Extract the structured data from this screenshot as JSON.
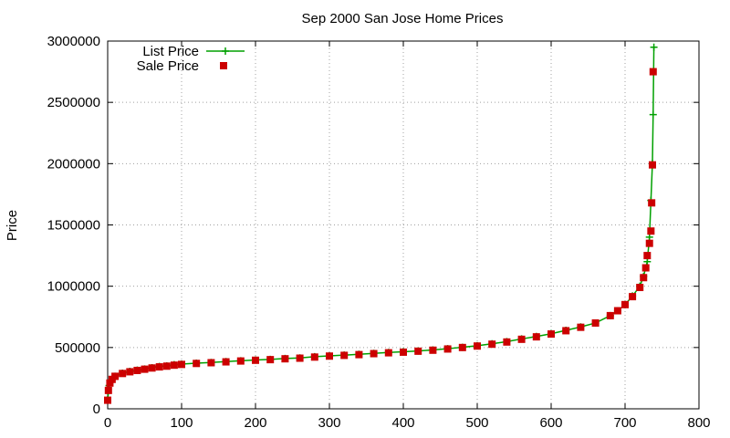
{
  "chart_data": {
    "type": "scatter",
    "title": "Sep 2000 San Jose Home Prices",
    "xlabel": "",
    "ylabel": "Price",
    "xlim": [
      0,
      800
    ],
    "ylim": [
      0,
      3000000
    ],
    "x_ticks": [
      "0",
      "100",
      "200",
      "300",
      "400",
      "500",
      "600",
      "700",
      "800"
    ],
    "y_ticks": [
      "0",
      "500000",
      "1000000",
      "1500000",
      "2000000",
      "2500000",
      "3000000"
    ],
    "grid": true,
    "legend_position": "top-left",
    "series": [
      {
        "name": "List Price",
        "style": "line-with-plus-markers",
        "color": "#00a000",
        "points": [
          [
            0,
            75000
          ],
          [
            2,
            190000
          ],
          [
            5,
            230000
          ],
          [
            10,
            265000
          ],
          [
            20,
            290000
          ],
          [
            30,
            305000
          ],
          [
            40,
            315000
          ],
          [
            50,
            325000
          ],
          [
            60,
            335000
          ],
          [
            70,
            345000
          ],
          [
            80,
            350000
          ],
          [
            90,
            360000
          ],
          [
            100,
            365000
          ],
          [
            120,
            372000
          ],
          [
            140,
            378000
          ],
          [
            160,
            385000
          ],
          [
            180,
            392000
          ],
          [
            200,
            398000
          ],
          [
            220,
            403000
          ],
          [
            240,
            410000
          ],
          [
            260,
            415000
          ],
          [
            280,
            425000
          ],
          [
            300,
            432000
          ],
          [
            320,
            438000
          ],
          [
            340,
            445000
          ],
          [
            360,
            452000
          ],
          [
            380,
            460000
          ],
          [
            400,
            465000
          ],
          [
            420,
            472000
          ],
          [
            440,
            480000
          ],
          [
            460,
            490000
          ],
          [
            480,
            502000
          ],
          [
            500,
            515000
          ],
          [
            520,
            530000
          ],
          [
            540,
            548000
          ],
          [
            560,
            570000
          ],
          [
            580,
            590000
          ],
          [
            600,
            612000
          ],
          [
            620,
            640000
          ],
          [
            640,
            668000
          ],
          [
            660,
            700000
          ],
          [
            680,
            760000
          ],
          [
            690,
            800000
          ],
          [
            700,
            850000
          ],
          [
            710,
            920000
          ],
          [
            720,
            1000000
          ],
          [
            725,
            1080000
          ],
          [
            730,
            1200000
          ],
          [
            733,
            1400000
          ],
          [
            735,
            1700000
          ],
          [
            737,
            2000000
          ],
          [
            738,
            2400000
          ],
          [
            739,
            2950000
          ]
        ]
      },
      {
        "name": "Sale Price",
        "style": "square-markers",
        "color": "#cc0000",
        "points": [
          [
            0,
            70000
          ],
          [
            1,
            150000
          ],
          [
            3,
            210000
          ],
          [
            6,
            240000
          ],
          [
            10,
            265000
          ],
          [
            20,
            288000
          ],
          [
            30,
            302000
          ],
          [
            40,
            313000
          ],
          [
            50,
            323000
          ],
          [
            60,
            333000
          ],
          [
            70,
            342000
          ],
          [
            80,
            348000
          ],
          [
            90,
            356000
          ],
          [
            100,
            362000
          ],
          [
            120,
            370000
          ],
          [
            140,
            376000
          ],
          [
            160,
            383000
          ],
          [
            180,
            390000
          ],
          [
            200,
            396000
          ],
          [
            220,
            401000
          ],
          [
            240,
            408000
          ],
          [
            260,
            413000
          ],
          [
            280,
            422000
          ],
          [
            300,
            430000
          ],
          [
            320,
            436000
          ],
          [
            340,
            442000
          ],
          [
            360,
            450000
          ],
          [
            380,
            457000
          ],
          [
            400,
            462000
          ],
          [
            420,
            470000
          ],
          [
            440,
            478000
          ],
          [
            460,
            488000
          ],
          [
            480,
            500000
          ],
          [
            500,
            512000
          ],
          [
            520,
            527000
          ],
          [
            540,
            545000
          ],
          [
            560,
            567000
          ],
          [
            580,
            587000
          ],
          [
            600,
            610000
          ],
          [
            620,
            637000
          ],
          [
            640,
            665000
          ],
          [
            660,
            700000
          ],
          [
            680,
            760000
          ],
          [
            690,
            800000
          ],
          [
            700,
            850000
          ],
          [
            710,
            915000
          ],
          [
            720,
            990000
          ],
          [
            725,
            1070000
          ],
          [
            728,
            1150000
          ],
          [
            730,
            1250000
          ],
          [
            733,
            1350000
          ],
          [
            735,
            1450000
          ],
          [
            736,
            1680000
          ],
          [
            737,
            1990000
          ],
          [
            738,
            2750000
          ]
        ]
      }
    ]
  }
}
